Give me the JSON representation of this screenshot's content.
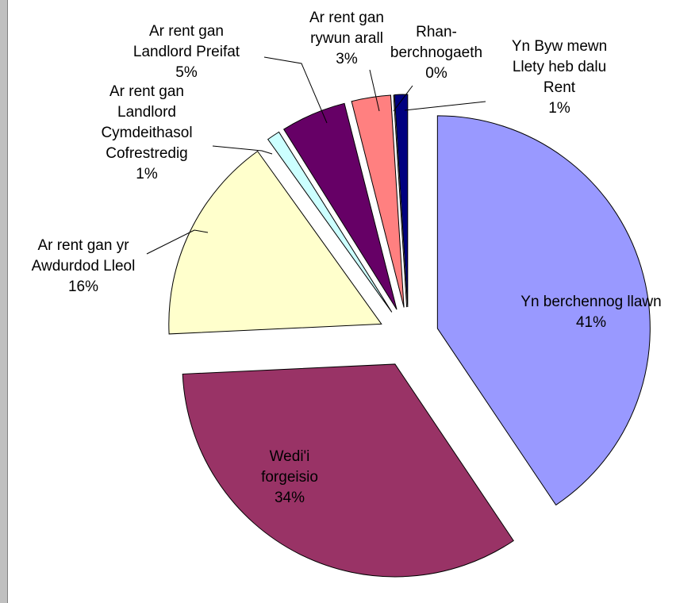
{
  "chart_data": {
    "type": "pie",
    "categories": [
      "Yn berchennog llawn",
      "Wedi'i forgeisio",
      "Ar rent gan yr Awdurdod Lleol",
      "Ar rent gan Landlord Cymdeithasol Cofrestredig",
      "Ar rent gan Landlord Preifat",
      "Ar rent gan rywun arall",
      "Rhan-berchnogaeth",
      "Yn Byw mewn Llety heb dalu Rent"
    ],
    "values": [
      41,
      34,
      16,
      1,
      5,
      3,
      0,
      1
    ],
    "value_labels": [
      "41%",
      "34%",
      "16%",
      "1%",
      "5%",
      "3%",
      "0%",
      "1%"
    ],
    "colors": [
      "#9999ff",
      "#993366",
      "#ffffcc",
      "#ccffff",
      "#660066",
      "#ff8080",
      "#0066cc",
      "#000080"
    ],
    "exploded": true
  }
}
